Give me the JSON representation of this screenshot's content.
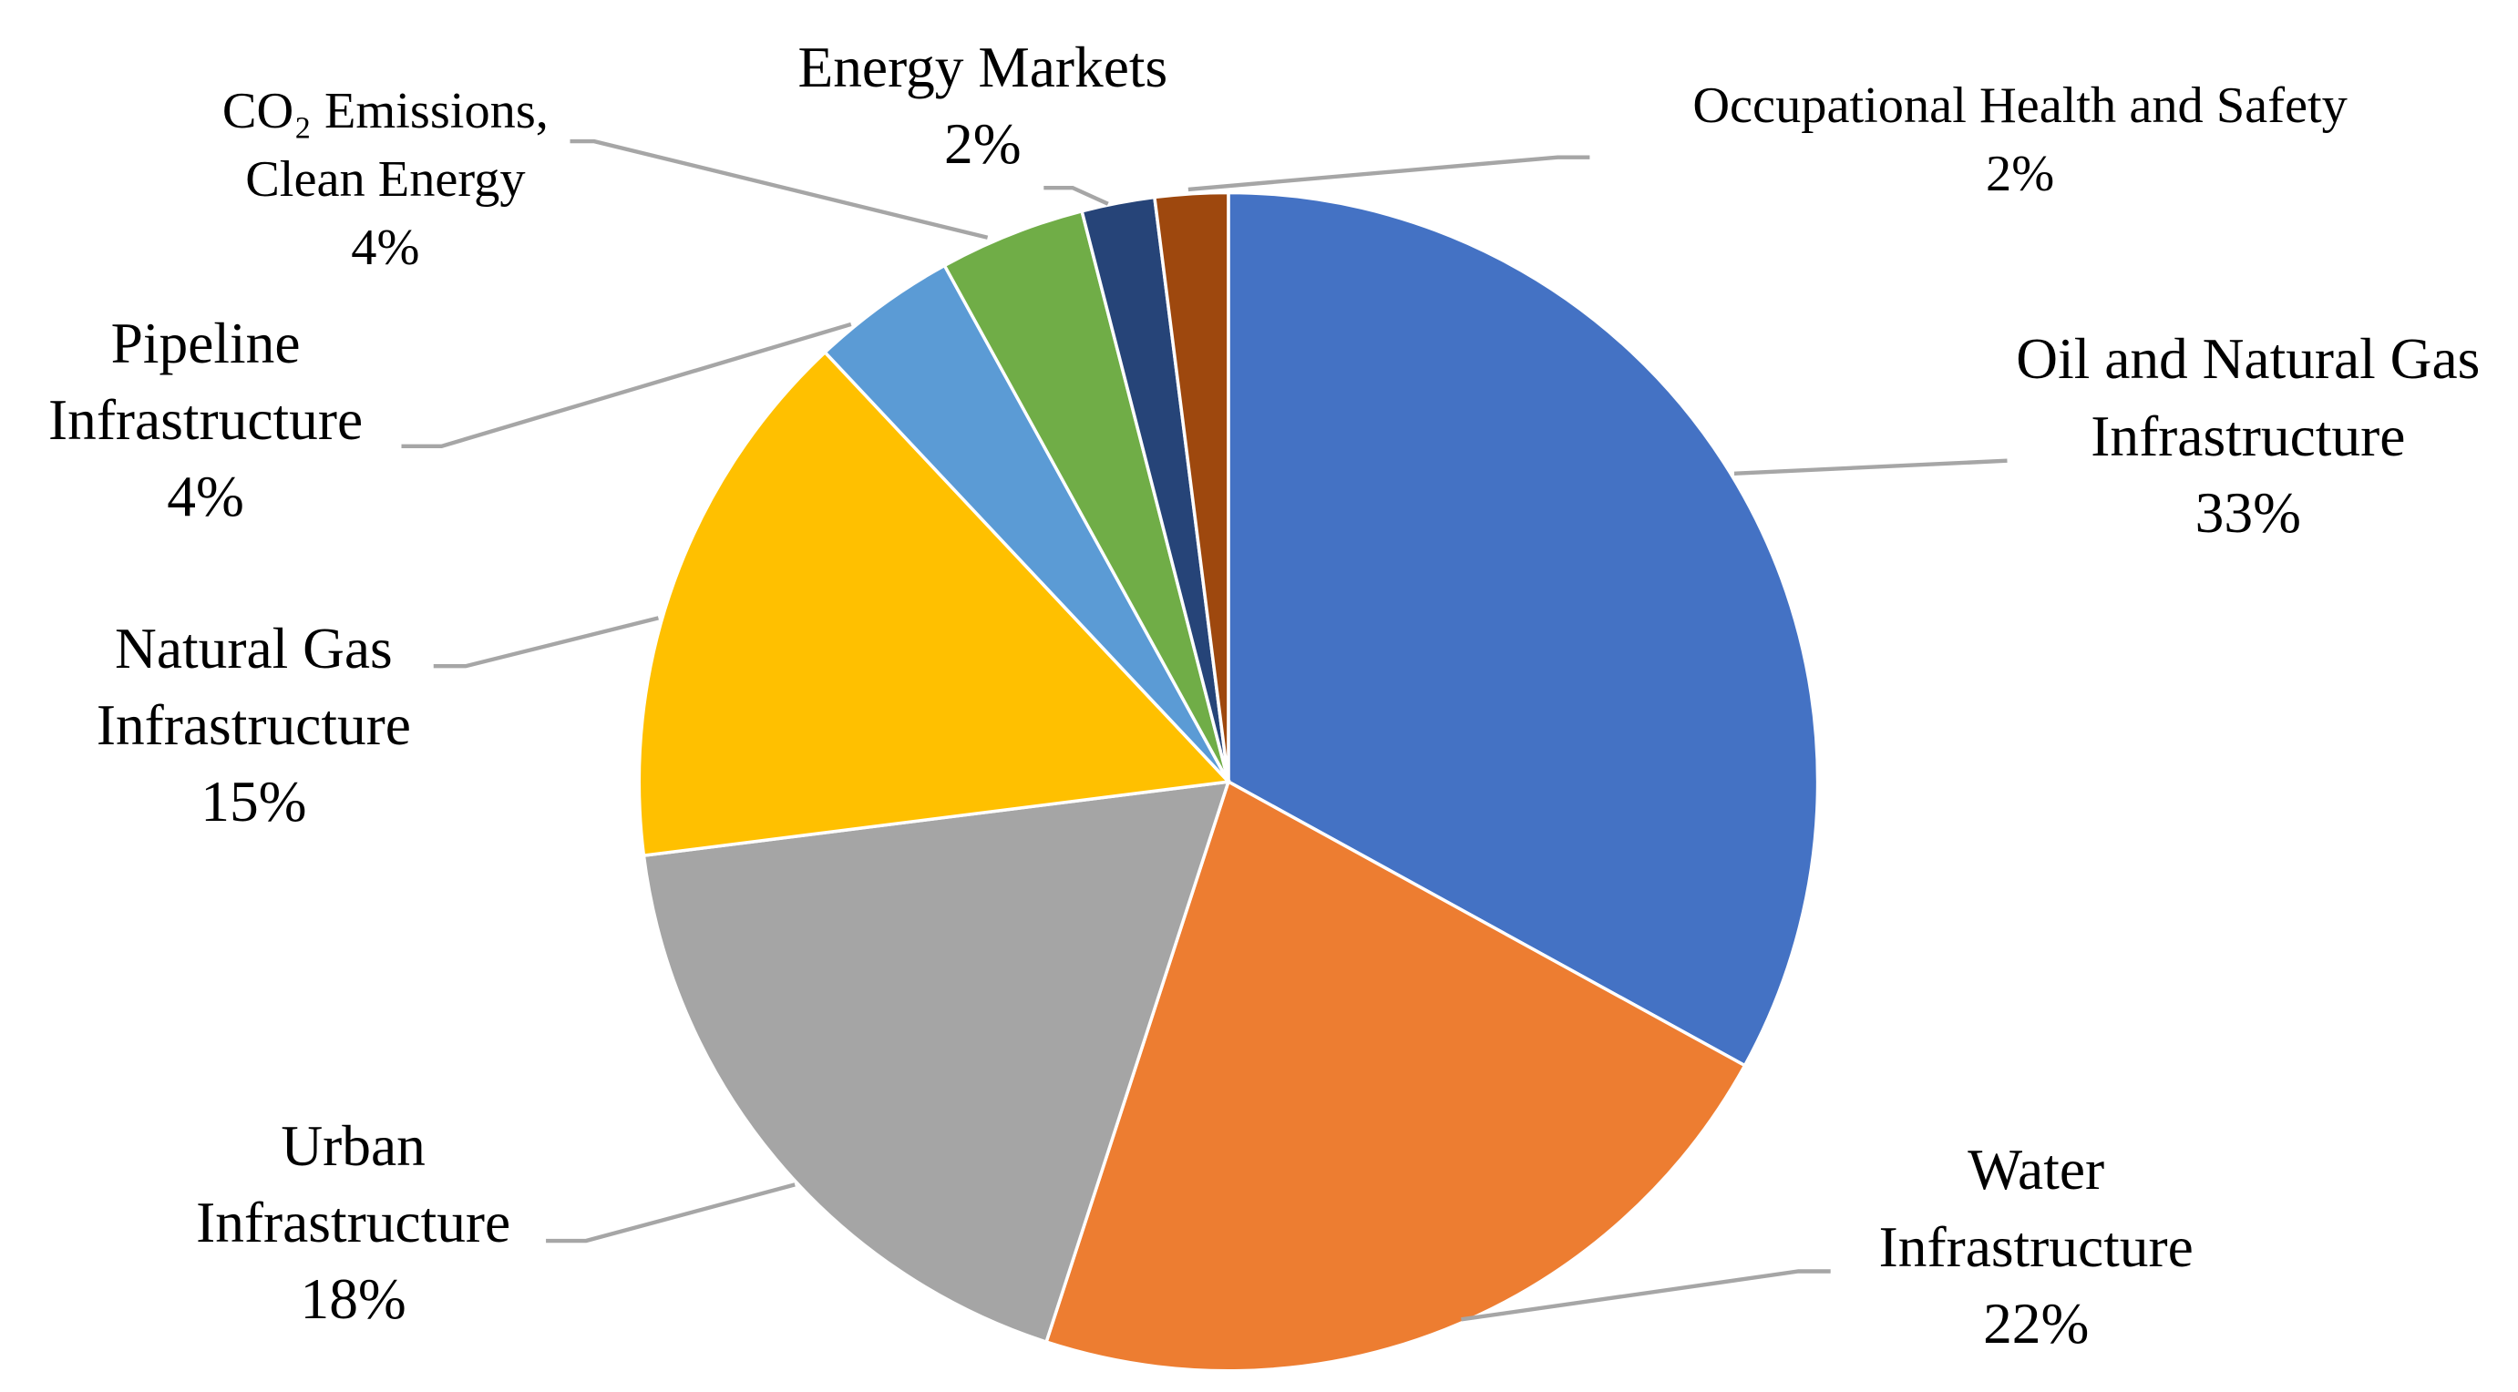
{
  "chart_data": {
    "type": "pie",
    "categories": [
      "Oil and Natural Gas Infrastructure",
      "Water Infrastructure",
      "Urban Infrastructure",
      "Natural Gas Infrastructure",
      "Pipeline Infrastructure",
      "CO₂ Emissions, Clean Energy",
      "Energy Markets",
      "Occupational Health and Safety"
    ],
    "values": [
      33,
      22,
      18,
      15,
      4,
      4,
      2,
      2
    ],
    "value_labels": [
      "33%",
      "22%",
      "18%",
      "15%",
      "4%",
      "4%",
      "2%",
      "2%"
    ],
    "colors": [
      "#4472c4",
      "#ed7d31",
      "#a5a5a5",
      "#ffc000",
      "#5b9bd5",
      "#70ad47",
      "#264478",
      "#9e480e"
    ]
  }
}
